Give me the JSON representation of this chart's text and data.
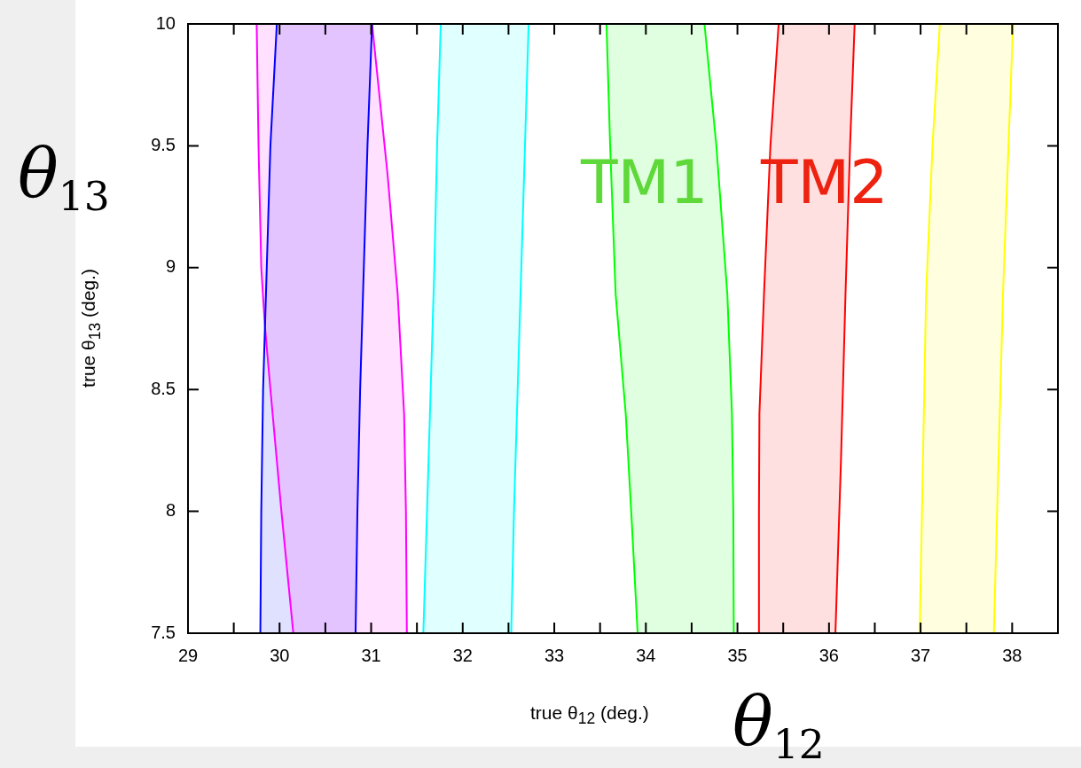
{
  "chart_data": {
    "type": "area",
    "xlabel": "true θ$_{12}$ (deg.)",
    "ylabel": "true θ$_{13}$ (deg.)",
    "xlim": [
      29,
      38.5
    ],
    "ylim": [
      7.5,
      10
    ],
    "xticks": [
      29,
      {
        "value": 29.5,
        "label": null
      },
      30,
      {
        "value": 30.5,
        "label": null
      },
      31,
      {
        "value": 31.5,
        "label": null
      },
      32,
      {
        "value": 32.5,
        "label": null
      },
      33,
      {
        "value": 33.5,
        "label": null
      },
      34,
      {
        "value": 34.5,
        "label": null
      },
      35,
      {
        "value": 35.5,
        "label": null
      },
      36,
      {
        "value": 36.5,
        "label": null
      },
      37,
      {
        "value": 37.5,
        "label": null
      },
      38
    ],
    "yticks": [
      7.5,
      8,
      8.5,
      9,
      9.5,
      10
    ],
    "grid": false,
    "legend": false,
    "series": [
      {
        "color": "#0000ff",
        "x": [
          29.79,
          29.8,
          29.82,
          29.86,
          29.9,
          29.97,
          31.01,
          30.96,
          30.92,
          30.88,
          30.85,
          30.83
        ],
        "values": [
          7.5,
          8,
          8.5,
          9,
          9.5,
          10,
          10,
          9.5,
          9,
          8.5,
          8,
          7.5
        ]
      },
      {
        "color": "#ff00ff",
        "x": [
          30.15,
          30.02,
          29.9,
          29.84,
          29.8,
          29.77,
          29.75,
          31.01,
          31.18,
          31.29,
          31.36,
          31.38,
          31.39
        ],
        "values": [
          7.5,
          8,
          8.5,
          8.76,
          9,
          9.5,
          10,
          10,
          9.38,
          8.89,
          8.4,
          8,
          7.5
        ]
      },
      {
        "color": "#00ffff",
        "x": [
          31.57,
          31.61,
          31.65,
          31.69,
          31.72,
          31.76,
          32.72,
          32.68,
          32.64,
          32.6,
          32.56,
          32.53
        ],
        "values": [
          7.5,
          8,
          8.5,
          9,
          9.5,
          10,
          10,
          9.5,
          9,
          8.5,
          8,
          7.5
        ]
      },
      {
        "color": "#00ff00",
        "x": [
          33.91,
          33.84,
          33.78,
          33.67,
          33.61,
          33.57,
          34.64,
          34.77,
          34.89,
          34.94,
          34.955,
          34.96
        ],
        "values": [
          7.5,
          8,
          8.4,
          8.89,
          9.5,
          10,
          10,
          9.5,
          8.89,
          8.4,
          8,
          7.5
        ]
      },
      {
        "color": "#ff0000",
        "x": [
          35.23,
          35.235,
          35.24,
          35.29,
          35.36,
          35.45,
          36.28,
          36.23,
          36.18,
          36.13,
          36.07
        ],
        "values": [
          7.5,
          8,
          8.4,
          8.89,
          9.5,
          10,
          10,
          9.5,
          8.89,
          8.2,
          7.5
        ]
      },
      {
        "color": "#ffff00",
        "x": [
          36.99,
          37.06,
          37.13,
          37.21,
          38.01,
          37.96,
          37.9,
          37.8
        ],
        "values": [
          7.5,
          8.89,
          9.5,
          10,
          10,
          9.5,
          8.89,
          7.5
        ]
      }
    ],
    "annotations": [
      "TM1",
      "TM2",
      "θ$_{13}$",
      "θ$_{12}$"
    ]
  }
}
